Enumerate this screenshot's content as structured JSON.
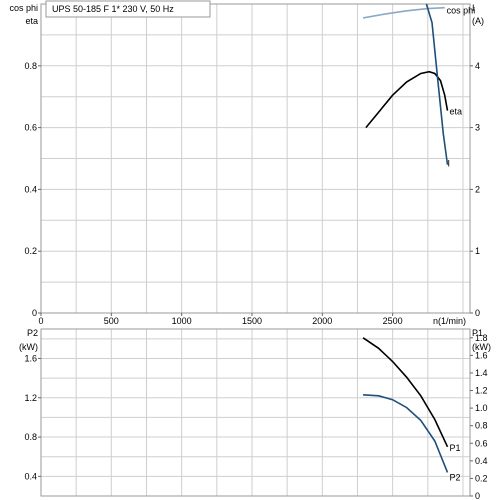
{
  "header": {
    "title": "UPS 50-185 F    1* 230 V, 50 Hz"
  },
  "colors": {
    "black": "#000000",
    "blue": "#1f4e79",
    "light_blue": "#8aa9c4",
    "grid": "#cfcfcf"
  },
  "chart_data": [
    {
      "type": "line",
      "title": "UPS 50-185 F    1* 230 V, 50 Hz",
      "xlabel": "n(1/min)",
      "ylabel": "cos phi / eta",
      "ylabel_left_top": "cos phi",
      "ylabel_left_bottom": "eta",
      "ylabel_right": "I",
      "ylabel_right_unit": "(A)",
      "xlim": [
        0,
        3050
      ],
      "ylim": [
        0,
        1.0
      ],
      "ylim_right": [
        0,
        5.0
      ],
      "xticks": [
        0,
        500,
        1000,
        1500,
        2000,
        2500
      ],
      "yticks": [
        0,
        0.2,
        0.4,
        0.6,
        0.8
      ],
      "yticks_right": [
        0,
        1,
        2,
        3,
        4
      ],
      "grid": true,
      "series": [
        {
          "name": "cos phi",
          "axis": "left",
          "color": "#8aa9c4",
          "x": [
            2290,
            2450,
            2600,
            2750,
            2870
          ],
          "y": [
            0.955,
            0.968,
            0.978,
            0.985,
            0.988
          ]
        },
        {
          "name": "eta",
          "axis": "left",
          "color": "#000000",
          "x": [
            2310,
            2400,
            2500,
            2600,
            2700,
            2760,
            2800,
            2840,
            2870,
            2890
          ],
          "y": [
            0.6,
            0.65,
            0.705,
            0.748,
            0.775,
            0.781,
            0.775,
            0.752,
            0.705,
            0.655
          ]
        },
        {
          "name": "I",
          "axis": "right",
          "color": "#1f4e79",
          "x": [
            2740,
            2780,
            2820,
            2860,
            2890
          ],
          "y": [
            5.4,
            4.7,
            3.8,
            2.9,
            2.4
          ]
        }
      ]
    },
    {
      "type": "line",
      "ylabel_left": "P2",
      "ylabel_left_unit": "(kW)",
      "ylabel_right": "P1",
      "ylabel_right_unit": "(kW)",
      "xlim": [
        0,
        3050
      ],
      "ylim": [
        0.2,
        1.9
      ],
      "yticks": [
        0.4,
        0.8,
        1.2,
        1.6
      ],
      "yticks_right": [
        0,
        0.2,
        0.4,
        0.6,
        0.8,
        1.0,
        1.2,
        1.4,
        1.6,
        1.8
      ],
      "ylim_right": [
        0,
        1.9
      ],
      "grid": true,
      "series": [
        {
          "name": "P1",
          "axis": "right",
          "color": "#000000",
          "x": [
            2290,
            2400,
            2500,
            2600,
            2700,
            2800,
            2890
          ],
          "y": [
            1.8,
            1.68,
            1.53,
            1.35,
            1.14,
            0.87,
            0.56
          ]
        },
        {
          "name": "P2",
          "axis": "left",
          "color": "#1f4e79",
          "x": [
            2290,
            2400,
            2500,
            2600,
            2700,
            2800,
            2890
          ],
          "y": [
            1.23,
            1.22,
            1.18,
            1.1,
            0.97,
            0.76,
            0.44
          ]
        }
      ]
    }
  ]
}
